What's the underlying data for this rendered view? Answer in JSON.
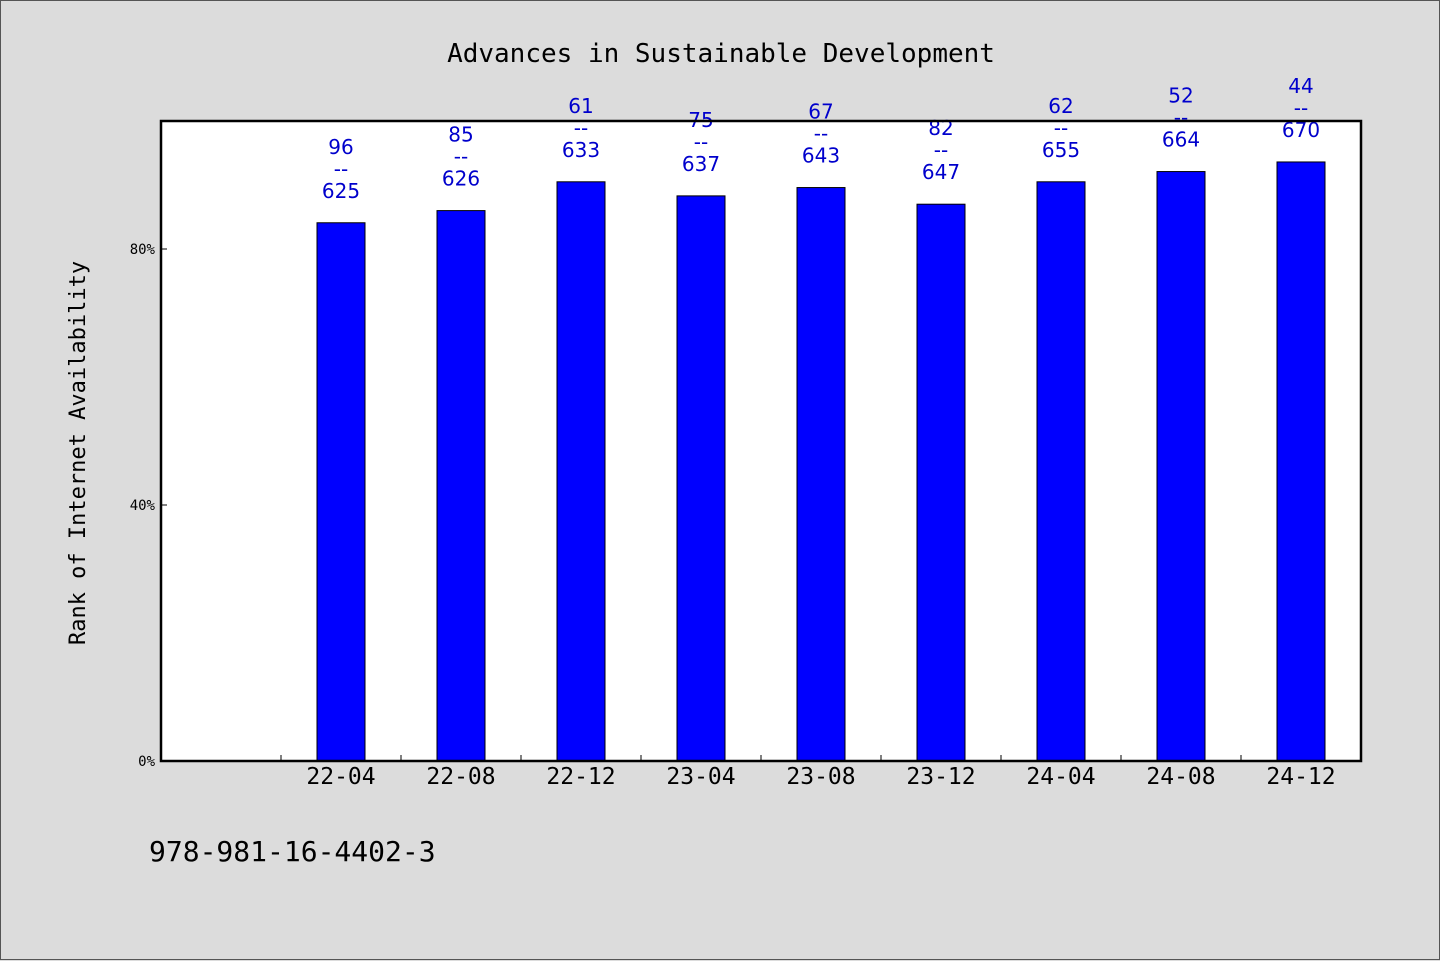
{
  "chart_data": {
    "type": "bar",
    "title": "Advances in Sustainable Development",
    "ylabel": "Rank of Internet Availability",
    "xlabel": "",
    "ylim": [
      0,
      100
    ],
    "yticks": [
      {
        "value": 0,
        "label": "0%"
      },
      {
        "value": 40,
        "label": "40%"
      },
      {
        "value": 80,
        "label": "80%"
      }
    ],
    "categories": [
      "22-04",
      "22-08",
      "22-12",
      "23-04",
      "23-08",
      "23-12",
      "24-04",
      "24-08",
      "24-12"
    ],
    "values": [
      84.1,
      86.0,
      90.5,
      88.3,
      89.6,
      87.0,
      90.5,
      92.1,
      93.6
    ],
    "data_labels": [
      {
        "top": "96",
        "sep": "--",
        "bottom": "625"
      },
      {
        "top": "85",
        "sep": "--",
        "bottom": "626"
      },
      {
        "top": "61",
        "sep": "--",
        "bottom": "633"
      },
      {
        "top": "75",
        "sep": "--",
        "bottom": "637"
      },
      {
        "top": "67",
        "sep": "--",
        "bottom": "643"
      },
      {
        "top": "82",
        "sep": "--",
        "bottom": "647"
      },
      {
        "top": "62",
        "sep": "--",
        "bottom": "655"
      },
      {
        "top": "52",
        "sep": "--",
        "bottom": "664"
      },
      {
        "top": "44",
        "sep": "--",
        "bottom": "670"
      }
    ],
    "bar_color": "#0000ff",
    "label_color": "#0000cc",
    "grid": false,
    "legend": "none"
  },
  "footer": {
    "isbn": "978-981-16-4402-3"
  }
}
